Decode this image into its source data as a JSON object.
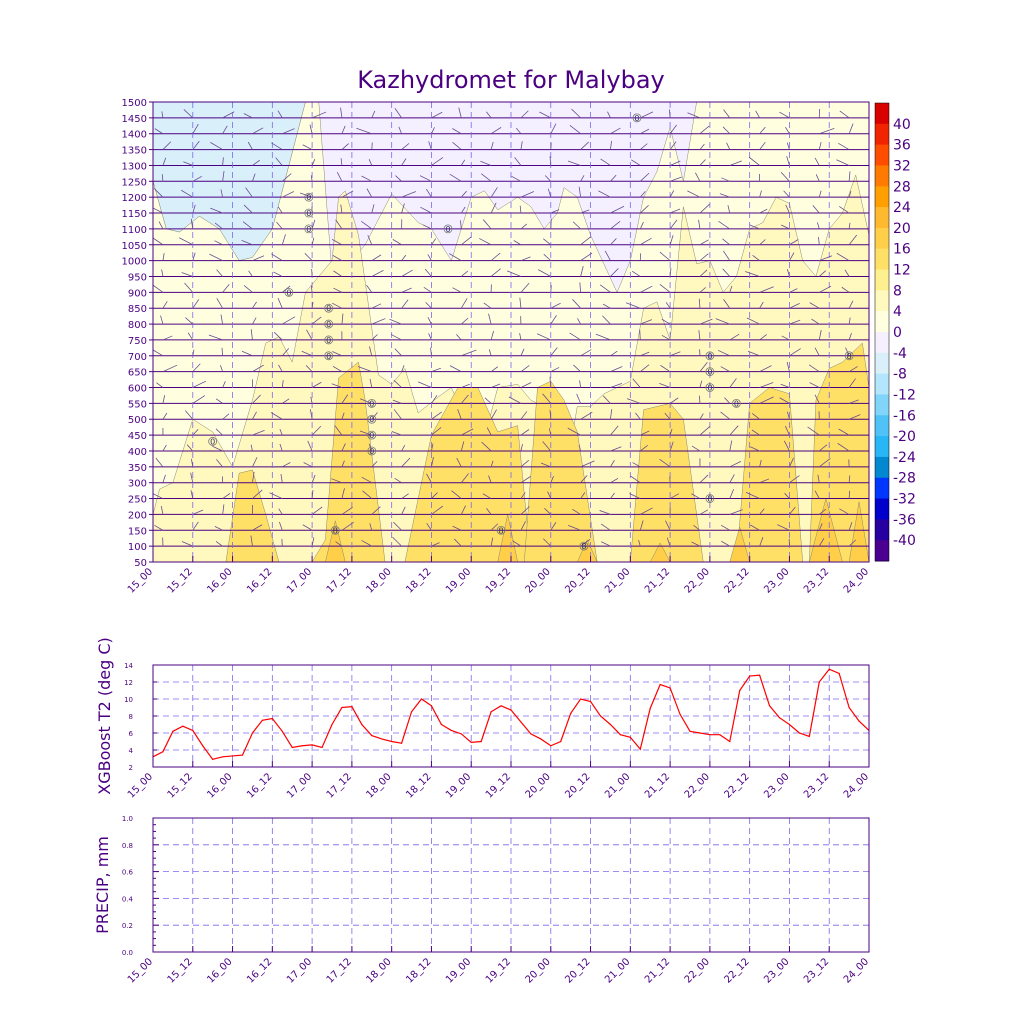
{
  "title": "Kazhydromet for Malybay",
  "colors": {
    "frame": "#4b0082",
    "text": "#4b0082",
    "grid": "#7b68ee",
    "t2_line": "#ff0000",
    "contour_line": "#000000",
    "wind_barb": "#6a4c93"
  },
  "time_ticks": [
    "15_00",
    "15_12",
    "16_00",
    "16_12",
    "17_00",
    "17_12",
    "18_00",
    "18_12",
    "19_00",
    "19_12",
    "20_00",
    "20_12",
    "21_00",
    "21_12",
    "22_00",
    "22_12",
    "23_00",
    "23_12",
    "24_00"
  ],
  "chart_data": [
    {
      "type": "heatmap",
      "name": "cross_section",
      "title": "Kazhydromet for Malybay",
      "x_range_hours": [
        0,
        216
      ],
      "y_levels": [
        50,
        100,
        150,
        200,
        250,
        300,
        350,
        400,
        450,
        500,
        550,
        600,
        650,
        700,
        750,
        800,
        850,
        900,
        950,
        1000,
        1050,
        1100,
        1150,
        1200,
        1250,
        1300,
        1350,
        1400,
        1450,
        1500
      ],
      "ylim": [
        50,
        1500
      ],
      "grid": true,
      "colorbar": {
        "labels": [
          "40",
          "36",
          "32",
          "28",
          "24",
          "20",
          "16",
          "12",
          "8",
          "4",
          "0",
          "-4",
          "-8",
          "-12",
          "-16",
          "-20",
          "-24",
          "-28",
          "-32",
          "-36",
          "-40"
        ],
        "colors": [
          "#d90000",
          "#f02500",
          "#ff4d00",
          "#ff7a00",
          "#ff9f00",
          "#ffb92e",
          "#ffcf4a",
          "#ffe066",
          "#fff08f",
          "#fff8bf",
          "#ffffe0",
          "#f4f0ff",
          "#d9f0fb",
          "#b3e5fc",
          "#81d4fa",
          "#4fc3f7",
          "#29b6f6",
          "#0288d1",
          "#0037ff",
          "#0000cc",
          "#2600a0",
          "#4b0091"
        ]
      },
      "band_0_4_top_profile": {
        "x": [
          0,
          4,
          8,
          14,
          20,
          26,
          30,
          36,
          40,
          46,
          50,
          54,
          56,
          60,
          64,
          72,
          80,
          84,
          90,
          96,
          100,
          104,
          110,
          114,
          118,
          122,
          124,
          128,
          132,
          136,
          140,
          144,
          148,
          152,
          156,
          160,
          164,
          168,
          170,
          174,
          180,
          186,
          190,
          196,
          200,
          206,
          210,
          216
        ],
        "y": [
          1250,
          1100,
          1090,
          1140,
          1100,
          1000,
          1010,
          1100,
          1260,
          1500,
          1500,
          960,
          980,
          1000,
          1050,
          1210,
          1120,
          1100,
          1000,
          1200,
          1220,
          1160,
          1200,
          1170,
          1100,
          1150,
          1230,
          1200,
          1080,
          990,
          900,
          1000,
          1200,
          1280,
          1420,
          1250,
          1500,
          1500,
          1500,
          1500,
          1500,
          1500,
          1500,
          1500,
          1500,
          1500,
          1500,
          1500
        ]
      },
      "band_4_8_top_profile": {
        "x": [
          0,
          2,
          6,
          12,
          18,
          24,
          30,
          34,
          38,
          42,
          46,
          50,
          54,
          56,
          58,
          62,
          68,
          72,
          76,
          80,
          86,
          90,
          96,
          100,
          104,
          110,
          114,
          118,
          122,
          124,
          128,
          132,
          136,
          140,
          144,
          148,
          152,
          156,
          160,
          164,
          168,
          172,
          176,
          180,
          184,
          188,
          192,
          196,
          200,
          204,
          208,
          212,
          216
        ],
        "y": [
          200,
          280,
          300,
          500,
          460,
          350,
          560,
          740,
          760,
          680,
          900,
          950,
          1000,
          1200,
          1220,
          1080,
          640,
          610,
          660,
          520,
          570,
          600,
          460,
          440,
          600,
          610,
          560,
          540,
          430,
          300,
          540,
          540,
          580,
          600,
          620,
          850,
          870,
          750,
          1170,
          990,
          1000,
          900,
          950,
          1100,
          1120,
          1200,
          1180,
          1000,
          950,
          1100,
          1150,
          1270,
          1080
        ]
      },
      "band_8_12_patches": [
        {
          "x": [
            22,
            26,
            30,
            34,
            38
          ],
          "y": [
            0,
            330,
            340,
            200,
            0
          ]
        },
        {
          "x": [
            48,
            52,
            56,
            62,
            64,
            70
          ],
          "y": [
            0,
            120,
            630,
            680,
            560,
            0
          ]
        },
        {
          "x": [
            76,
            84,
            92,
            98,
            104,
            110,
            114
          ],
          "y": [
            0,
            450,
            600,
            600,
            460,
            480,
            0
          ]
        },
        {
          "x": [
            112,
            116,
            120,
            124,
            128,
            134
          ],
          "y": [
            0,
            600,
            620,
            560,
            460,
            0
          ]
        },
        {
          "x": [
            144,
            148,
            152,
            156,
            160,
            166
          ],
          "y": [
            0,
            530,
            540,
            550,
            500,
            0
          ]
        },
        {
          "x": [
            176,
            180,
            186,
            192,
            196
          ],
          "y": [
            0,
            550,
            600,
            580,
            0
          ]
        },
        {
          "x": [
            198,
            200,
            204,
            208,
            214,
            216
          ],
          "y": [
            0,
            560,
            660,
            680,
            740,
            600
          ]
        }
      ],
      "band_12_16_patches": [
        {
          "x": [
            52,
            55,
            58
          ],
          "y": [
            0,
            180,
            0
          ]
        },
        {
          "x": [
            104,
            107,
            110
          ],
          "y": [
            0,
            200,
            0
          ]
        },
        {
          "x": [
            128,
            131,
            134
          ],
          "y": [
            0,
            120,
            0
          ]
        },
        {
          "x": [
            150,
            153,
            156
          ],
          "y": [
            0,
            110,
            0
          ]
        },
        {
          "x": [
            174,
            177,
            180
          ],
          "y": [
            0,
            160,
            0
          ]
        },
        {
          "x": [
            198,
            203,
            208
          ],
          "y": [
            0,
            250,
            0
          ]
        },
        {
          "x": [
            210,
            213,
            216
          ],
          "y": [
            0,
            240,
            0
          ]
        }
      ],
      "contour_labels": [
        {
          "x": 18,
          "y": 430,
          "text": "0"
        },
        {
          "x": 41,
          "y": 900,
          "text": "0"
        },
        {
          "x": 47,
          "y": 1200,
          "text": "0"
        },
        {
          "x": 47,
          "y": 1150,
          "text": "0"
        },
        {
          "x": 47,
          "y": 1100,
          "text": "0"
        },
        {
          "x": 53,
          "y": 850,
          "text": "0"
        },
        {
          "x": 53,
          "y": 800,
          "text": "0"
        },
        {
          "x": 53,
          "y": 750,
          "text": "0"
        },
        {
          "x": 53,
          "y": 700,
          "text": "0"
        },
        {
          "x": 66,
          "y": 550,
          "text": "0"
        },
        {
          "x": 66,
          "y": 500,
          "text": "0"
        },
        {
          "x": 66,
          "y": 450,
          "text": "0"
        },
        {
          "x": 66,
          "y": 400,
          "text": "0"
        },
        {
          "x": 89,
          "y": 1100,
          "text": "0"
        },
        {
          "x": 146,
          "y": 1450,
          "text": "0"
        },
        {
          "x": 168,
          "y": 700,
          "text": "0"
        },
        {
          "x": 168,
          "y": 650,
          "text": "0"
        },
        {
          "x": 168,
          "y": 600,
          "text": "0"
        },
        {
          "x": 176,
          "y": 550,
          "text": "0"
        },
        {
          "x": 55,
          "y": 150,
          "text": "8"
        },
        {
          "x": 105,
          "y": 150,
          "text": "8"
        },
        {
          "x": 130,
          "y": 100,
          "text": "8"
        },
        {
          "x": 168,
          "y": 250,
          "text": "8"
        },
        {
          "x": 210,
          "y": 700,
          "text": "8"
        }
      ]
    },
    {
      "type": "line",
      "name": "xgboost_t2",
      "ylabel": "XGBoost T2 (deg C)",
      "ylim": [
        2,
        14
      ],
      "yticks": [
        2,
        4,
        6,
        8,
        10,
        12,
        14
      ],
      "grid": true,
      "x_hours": [
        0,
        3,
        6,
        9,
        12,
        15,
        18,
        21,
        24,
        27,
        30,
        33,
        36,
        39,
        42,
        45,
        48,
        51,
        54,
        57,
        60,
        63,
        66,
        69,
        72,
        75,
        78,
        81,
        84,
        87,
        90,
        93,
        96,
        99,
        102,
        105,
        108,
        111,
        114,
        117,
        120,
        123,
        126,
        129,
        132,
        135,
        138,
        141,
        144,
        147,
        150,
        153,
        156,
        159,
        162,
        165,
        168,
        171,
        174,
        177,
        180,
        183,
        186,
        189,
        192,
        195,
        198,
        201,
        204,
        207,
        210,
        213,
        216
      ],
      "values": [
        3.2,
        3.8,
        6.2,
        6.8,
        6.3,
        4.5,
        2.9,
        3.2,
        3.3,
        3.4,
        6.0,
        7.5,
        7.7,
        6.2,
        4.3,
        4.5,
        4.6,
        4.3,
        7.0,
        9.0,
        9.1,
        7.0,
        5.7,
        5.3,
        5.0,
        4.8,
        8.5,
        10.0,
        9.2,
        7.0,
        6.3,
        5.9,
        4.9,
        5.0,
        8.5,
        9.2,
        8.7,
        7.3,
        5.9,
        5.3,
        4.5,
        5.0,
        8.3,
        10.0,
        9.7,
        8.0,
        7.0,
        5.8,
        5.5,
        4.1,
        8.9,
        11.7,
        11.3,
        8.2,
        6.2,
        6.0,
        5.8,
        5.8,
        5.0,
        11.0,
        12.7,
        12.8,
        9.2,
        7.8,
        7.0,
        6.0,
        5.6,
        12.0,
        13.5,
        13.0,
        9.0,
        7.4,
        6.3
      ]
    },
    {
      "type": "line",
      "name": "precip",
      "ylabel": "PRECIP, mm",
      "ylim": [
        0,
        1.0
      ],
      "yticks": [
        "0.0",
        "0.2",
        "0.4",
        "0.6",
        "0.8",
        "1.0"
      ],
      "grid": true,
      "values": []
    }
  ]
}
